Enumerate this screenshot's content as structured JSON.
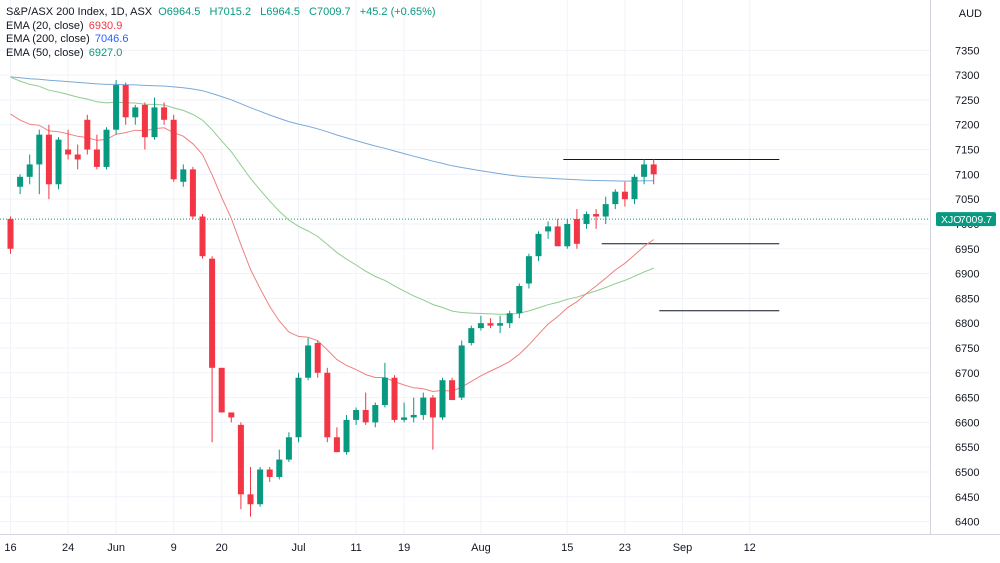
{
  "header": {
    "symbol_line": "S&P/ASX 200 Index, 1D, ASX",
    "ohlc": {
      "O": "6964.5",
      "H": "7015.2",
      "L": "6964.5",
      "C": "7009.7",
      "change": "+45.2 (+0.65%)"
    },
    "currency": "AUD"
  },
  "indicators": [
    {
      "label": "EMA (20, close)",
      "value": "6930.9",
      "color": "#f23645"
    },
    {
      "label": "EMA (200, close)",
      "value": "7046.6",
      "color": "#2962ff"
    },
    {
      "label": "EMA (50, close)",
      "value": "6927.0",
      "color": "#089981"
    }
  ],
  "price_badge": {
    "symbol": "XJO",
    "value": "7009.7"
  },
  "colors": {
    "up": "#089981",
    "down": "#f23645",
    "ema20": "#f08080",
    "ema200": "#7aa9d8",
    "ema50": "#8fcc8f"
  },
  "chart_data": {
    "type": "candlestick",
    "y_ticks": [
      6400,
      6450,
      6500,
      6550,
      6600,
      6650,
      6700,
      6750,
      6800,
      6850,
      6900,
      6950,
      7000,
      7050,
      7100,
      7150,
      7200,
      7250,
      7300,
      7350
    ],
    "ylim": [
      6375,
      7395
    ],
    "x_labels": [
      {
        "label": "16",
        "index": 0
      },
      {
        "label": "24",
        "index": 6
      },
      {
        "label": "Jun",
        "index": 11
      },
      {
        "label": "9",
        "index": 17
      },
      {
        "label": "20",
        "index": 22
      },
      {
        "label": "Jul",
        "index": 30
      },
      {
        "label": "11",
        "index": 36
      },
      {
        "label": "19",
        "index": 41
      },
      {
        "label": "Aug",
        "index": 49
      },
      {
        "label": "15",
        "index": 58
      },
      {
        "label": "23",
        "index": 64
      },
      {
        "label": "Sep",
        "index": 70
      },
      {
        "label": "12",
        "index": 77
      }
    ],
    "candles": [
      [
        7010,
        7015,
        6940,
        6950
      ],
      [
        7075,
        7100,
        7060,
        7095
      ],
      [
        7095,
        7140,
        7080,
        7120
      ],
      [
        7120,
        7190,
        7060,
        7180
      ],
      [
        7180,
        7200,
        7050,
        7080
      ],
      [
        7080,
        7175,
        7070,
        7170
      ],
      [
        7150,
        7190,
        7130,
        7140
      ],
      [
        7140,
        7160,
        7110,
        7130
      ],
      [
        7210,
        7220,
        7140,
        7150
      ],
      [
        7150,
        7180,
        7110,
        7115
      ],
      [
        7115,
        7195,
        7110,
        7190
      ],
      [
        7190,
        7290,
        7180,
        7280
      ],
      [
        7280,
        7285,
        7200,
        7215
      ],
      [
        7215,
        7240,
        7200,
        7235
      ],
      [
        7240,
        7245,
        7150,
        7175
      ],
      [
        7175,
        7255,
        7170,
        7235
      ],
      [
        7235,
        7245,
        7200,
        7210
      ],
      [
        7210,
        7220,
        7085,
        7090
      ],
      [
        7085,
        7120,
        7075,
        7110
      ],
      [
        7110,
        7115,
        7010,
        7015
      ],
      [
        7015,
        7020,
        6930,
        6935
      ],
      [
        6930,
        6935,
        6560,
        6710
      ],
      [
        6710,
        6710,
        6620,
        6620
      ],
      [
        6620,
        6620,
        6600,
        6610
      ],
      [
        6595,
        6600,
        6425,
        6455
      ],
      [
        6455,
        6510,
        6410,
        6435
      ],
      [
        6435,
        6510,
        6430,
        6505
      ],
      [
        6505,
        6510,
        6480,
        6490
      ],
      [
        6490,
        6545,
        6485,
        6525
      ],
      [
        6525,
        6580,
        6520,
        6570
      ],
      [
        6570,
        6700,
        6560,
        6690
      ],
      [
        6690,
        6770,
        6685,
        6755
      ],
      [
        6760,
        6765,
        6690,
        6700
      ],
      [
        6700,
        6710,
        6560,
        6570
      ],
      [
        6570,
        6590,
        6540,
        6540
      ],
      [
        6540,
        6615,
        6535,
        6605
      ],
      [
        6605,
        6630,
        6595,
        6625
      ],
      [
        6625,
        6660,
        6595,
        6600
      ],
      [
        6600,
        6640,
        6590,
        6635
      ],
      [
        6635,
        6720,
        6630,
        6690
      ],
      [
        6690,
        6695,
        6600,
        6605
      ],
      [
        6605,
        6640,
        6600,
        6610
      ],
      [
        6610,
        6650,
        6600,
        6615
      ],
      [
        6615,
        6660,
        6605,
        6650
      ],
      [
        6650,
        6655,
        6545,
        6610
      ],
      [
        6610,
        6690,
        6605,
        6685
      ],
      [
        6685,
        6690,
        6650,
        6645
      ],
      [
        6650,
        6765,
        6645,
        6755
      ],
      [
        6760,
        6795,
        6755,
        6790
      ],
      [
        6790,
        6815,
        6785,
        6800
      ],
      [
        6800,
        6810,
        6790,
        6795
      ],
      [
        6795,
        6815,
        6780,
        6800
      ],
      [
        6800,
        6825,
        6790,
        6820
      ],
      [
        6820,
        6880,
        6810,
        6875
      ],
      [
        6880,
        6940,
        6870,
        6935
      ],
      [
        6935,
        6985,
        6925,
        6980
      ],
      [
        6985,
        7005,
        6970,
        6995
      ],
      [
        6995,
        7010,
        6960,
        6955
      ],
      [
        6955,
        7010,
        6950,
        7000
      ],
      [
        7010,
        7030,
        6950,
        6960
      ],
      [
        7000,
        7025,
        6990,
        7020
      ],
      [
        7020,
        7030,
        6990,
        7015
      ],
      [
        7015,
        7055,
        7000,
        7040
      ],
      [
        7040,
        7070,
        7030,
        7065
      ],
      [
        7065,
        7085,
        7035,
        7050
      ],
      [
        7050,
        7100,
        7040,
        7095
      ],
      [
        7095,
        7130,
        7080,
        7120
      ],
      [
        7120,
        7130,
        7080,
        7100
      ]
    ]
  }
}
